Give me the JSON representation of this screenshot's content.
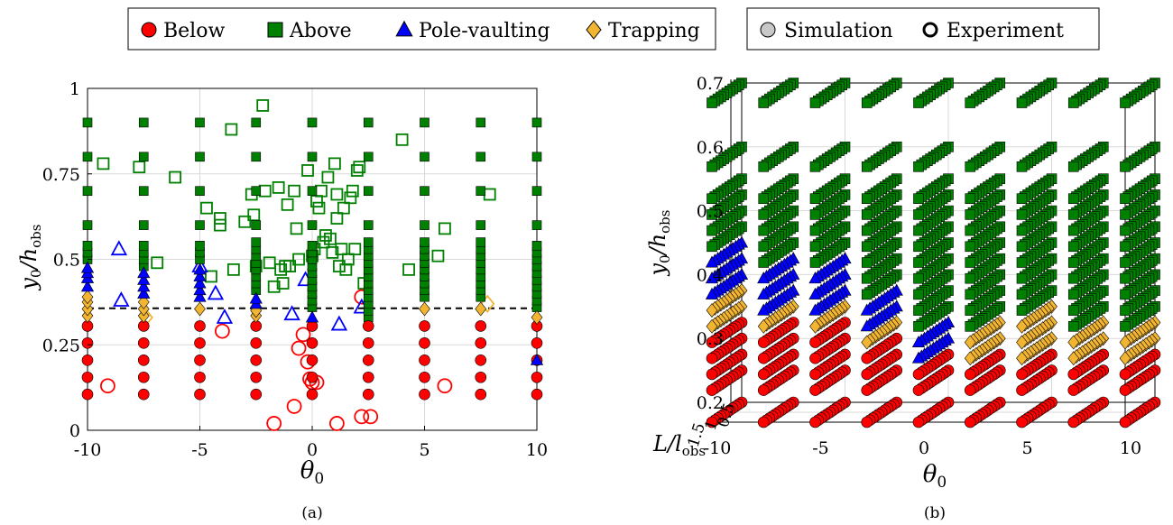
{
  "colors": {
    "below": "#ff0000",
    "above": "#008000",
    "pole": "#0000ff",
    "trap": "#f2b531",
    "grid": "#d9d9d9"
  },
  "legend_left": {
    "entries": [
      {
        "key": "below",
        "label": "Below",
        "marker": "circle"
      },
      {
        "key": "above",
        "label": "Above",
        "marker": "square"
      },
      {
        "key": "pole",
        "label": "Pole-vaulting",
        "marker": "triangle"
      },
      {
        "key": "trap",
        "label": "Trapping",
        "marker": "diamond"
      }
    ]
  },
  "legend_right": {
    "entries": [
      {
        "key": "sim",
        "label": "Simulation",
        "marker": "filled-circle"
      },
      {
        "key": "exp",
        "label": "Experiment",
        "marker": "open-circle"
      }
    ]
  },
  "panel_labels": {
    "a": "(a)",
    "b": "(b)"
  },
  "chart_data": [
    {
      "type": "scatter",
      "panel": "(a)",
      "xlabel": "θ0",
      "ylabel": "y0/hobs",
      "xlim": [
        -10,
        10
      ],
      "ylim": [
        0,
        1
      ],
      "xticks": [
        -10,
        -5,
        0,
        5,
        10
      ],
      "xtick_labels": [
        "-10",
        "-5",
        "0",
        "5",
        "10"
      ],
      "yticks": [
        0,
        0.25,
        0.5,
        0.75,
        1
      ],
      "ytick_labels": [
        "0",
        "0.25",
        "0.5",
        "0.75",
        "1"
      ],
      "grid": true,
      "threshold_line": {
        "y": 0.357,
        "style": "dashed"
      },
      "simulation_theta": [
        -10,
        -7.5,
        -5,
        -2.5,
        0,
        2.5,
        5,
        7.5,
        10
      ],
      "simulation": [
        {
          "x": -10,
          "below": [
            0.105,
            0.155,
            0.205,
            0.255,
            0.305
          ],
          "trapping": [
            0.335,
            0.355,
            0.375,
            0.39
          ],
          "pole_vaulting": [
            0.42,
            0.445,
            0.46,
            0.475
          ],
          "above": [
            0.5,
            0.52,
            0.54,
            0.6,
            0.7,
            0.8,
            0.9
          ]
        },
        {
          "x": -7.5,
          "below": [
            0.105,
            0.155,
            0.205,
            0.255,
            0.305
          ],
          "trapping": [
            0.335,
            0.355,
            0.375
          ],
          "pole_vaulting": [
            0.4,
            0.42,
            0.44,
            0.46
          ],
          "above": [
            0.48,
            0.5,
            0.52,
            0.54,
            0.6,
            0.7,
            0.8,
            0.9
          ]
        },
        {
          "x": -5,
          "below": [
            0.105,
            0.155,
            0.205,
            0.255,
            0.305
          ],
          "trapping": [
            0.355
          ],
          "pole_vaulting": [
            0.39,
            0.41,
            0.43,
            0.45,
            0.47
          ],
          "above": [
            0.5,
            0.52,
            0.54,
            0.6,
            0.7,
            0.8,
            0.9
          ]
        },
        {
          "x": -2.5,
          "below": [
            0.105,
            0.155,
            0.205,
            0.255,
            0.305
          ],
          "trapping": [
            0.335,
            0.35
          ],
          "pole_vaulting": [
            0.37,
            0.385
          ],
          "above": [
            0.41,
            0.43,
            0.45,
            0.47,
            0.49,
            0.51,
            0.53,
            0.55,
            0.6,
            0.7,
            0.8,
            0.9
          ]
        },
        {
          "x": 0,
          "below": [
            0.105,
            0.155,
            0.205,
            0.255,
            0.305
          ],
          "trapping": [],
          "pole_vaulting": [
            0.33
          ],
          "above": [
            0.36,
            0.38,
            0.4,
            0.42,
            0.44,
            0.46,
            0.48,
            0.5,
            0.52,
            0.54,
            0.6,
            0.7,
            0.8,
            0.9
          ]
        },
        {
          "x": 2.5,
          "below": [
            0.105,
            0.155,
            0.205,
            0.255,
            0.305
          ],
          "trapping": [],
          "pole_vaulting": [],
          "above": [
            0.33,
            0.35,
            0.37,
            0.39,
            0.41,
            0.43,
            0.45,
            0.47,
            0.49,
            0.51,
            0.53,
            0.55,
            0.6,
            0.7,
            0.8,
            0.9
          ]
        },
        {
          "x": 5,
          "below": [
            0.105,
            0.155,
            0.205,
            0.255,
            0.305
          ],
          "trapping": [
            0.355
          ],
          "pole_vaulting": [],
          "above": [
            0.39,
            0.41,
            0.43,
            0.45,
            0.47,
            0.49,
            0.51,
            0.53,
            0.55,
            0.6,
            0.7,
            0.8,
            0.9
          ]
        },
        {
          "x": 7.5,
          "below": [
            0.105,
            0.155,
            0.205,
            0.255,
            0.305
          ],
          "trapping": [
            0.355
          ],
          "pole_vaulting": [],
          "above": [
            0.39,
            0.41,
            0.43,
            0.45,
            0.47,
            0.49,
            0.51,
            0.53,
            0.55,
            0.6,
            0.7,
            0.8,
            0.9
          ]
        },
        {
          "x": 10,
          "below": [
            0.105,
            0.155,
            0.205,
            0.255,
            0.305
          ],
          "trapping": [
            0.33
          ],
          "pole_vaulting": [
            0.205
          ],
          "above": [
            0.36,
            0.38,
            0.4,
            0.42,
            0.44,
            0.46,
            0.48,
            0.5,
            0.52,
            0.54,
            0.6,
            0.7,
            0.8,
            0.9
          ]
        }
      ],
      "experiment": {
        "below": [
          [
            -9.1,
            0.13
          ],
          [
            -4.0,
            0.29
          ],
          [
            -1.7,
            0.02
          ],
          [
            -0.8,
            0.07
          ],
          [
            -0.6,
            0.24
          ],
          [
            -0.4,
            0.28
          ],
          [
            -0.2,
            0.2
          ],
          [
            -0.1,
            0.15
          ],
          [
            0.0,
            0.14
          ],
          [
            0.2,
            0.14
          ],
          [
            1.1,
            0.02
          ],
          [
            2.2,
            0.04
          ],
          [
            2.2,
            0.39
          ],
          [
            2.6,
            0.04
          ],
          [
            5.9,
            0.13
          ]
        ],
        "pole_vaulting": [
          [
            -8.6,
            0.53
          ],
          [
            -8.5,
            0.38
          ],
          [
            -5.0,
            0.48
          ],
          [
            -4.3,
            0.4
          ],
          [
            -3.9,
            0.33
          ],
          [
            -0.9,
            0.34
          ],
          [
            -0.3,
            0.44
          ],
          [
            1.2,
            0.31
          ],
          [
            2.2,
            0.36
          ]
        ],
        "trapping": [
          [
            -7.4,
            0.33
          ],
          [
            7.8,
            0.37
          ]
        ],
        "above": [
          [
            -9.3,
            0.78
          ],
          [
            -7.7,
            0.77
          ],
          [
            -6.9,
            0.49
          ],
          [
            -6.1,
            0.74
          ],
          [
            -4.7,
            0.65
          ],
          [
            -4.5,
            0.45
          ],
          [
            -4.1,
            0.6
          ],
          [
            -4.1,
            0.62
          ],
          [
            -3.6,
            0.88
          ],
          [
            -3.5,
            0.47
          ],
          [
            -3.0,
            0.61
          ],
          [
            -2.7,
            0.69
          ],
          [
            -2.6,
            0.63
          ],
          [
            -2.5,
            0.48
          ],
          [
            -2.2,
            0.95
          ],
          [
            -2.1,
            0.7
          ],
          [
            -1.9,
            0.49
          ],
          [
            -1.7,
            0.42
          ],
          [
            -1.5,
            0.71
          ],
          [
            -1.4,
            0.47
          ],
          [
            -1.3,
            0.43
          ],
          [
            -1.2,
            0.48
          ],
          [
            -1.1,
            0.66
          ],
          [
            -1.0,
            0.48
          ],
          [
            -0.8,
            0.7
          ],
          [
            -0.7,
            0.59
          ],
          [
            -0.6,
            0.5
          ],
          [
            -0.2,
            0.76
          ],
          [
            0.0,
            0.51
          ],
          [
            0.1,
            0.53
          ],
          [
            0.2,
            0.67
          ],
          [
            0.3,
            0.65
          ],
          [
            0.4,
            0.7
          ],
          [
            0.5,
            0.55
          ],
          [
            0.6,
            0.57
          ],
          [
            0.7,
            0.74
          ],
          [
            0.8,
            0.56
          ],
          [
            0.9,
            0.52
          ],
          [
            1.0,
            0.78
          ],
          [
            1.1,
            0.62
          ],
          [
            1.1,
            0.69
          ],
          [
            1.2,
            0.48
          ],
          [
            1.3,
            0.53
          ],
          [
            1.4,
            0.65
          ],
          [
            1.5,
            0.47
          ],
          [
            1.6,
            0.5
          ],
          [
            1.7,
            0.68
          ],
          [
            1.8,
            0.7
          ],
          [
            1.9,
            0.53
          ],
          [
            2.0,
            0.76
          ],
          [
            2.1,
            0.77
          ],
          [
            2.3,
            0.43
          ],
          [
            4.0,
            0.85
          ],
          [
            4.3,
            0.47
          ],
          [
            5.6,
            0.51
          ],
          [
            5.9,
            0.59
          ],
          [
            7.9,
            0.69
          ]
        ]
      }
    },
    {
      "type": "scatter",
      "panel": "(b)",
      "projection": "3d",
      "xlabel": "θ0",
      "ylabel": "y0/hobs",
      "zlabel": "L/lobs",
      "xlim": [
        -10,
        10
      ],
      "ylim": [
        0.2,
        0.7
      ],
      "zlim": [
        0.5,
        1.5
      ],
      "xticks": [
        -10,
        -5,
        0,
        5,
        10
      ],
      "xtick_labels": [
        "-10",
        "-5",
        "0",
        "5",
        "10"
      ],
      "yticks": [
        0.2,
        0.3,
        0.4,
        0.5,
        0.6,
        0.7
      ],
      "ytick_labels": [
        "0.2",
        "0.3",
        "0.4",
        "0.5",
        "0.6",
        "0.7"
      ],
      "zticks": [
        0.5,
        1,
        1.5
      ],
      "ztick_labels": [
        "0.5",
        "1",
        "1.5"
      ],
      "grid": true,
      "theta": [
        -10,
        -7.5,
        -5,
        -2.5,
        0,
        2.5,
        5,
        7.5,
        10
      ],
      "L_values": [
        0.5,
        0.6,
        0.7,
        0.8,
        0.9,
        1.0,
        1.1,
        1.2,
        1.3,
        1.4,
        1.5
      ],
      "y_levels": [
        0.2,
        0.25,
        0.275,
        0.3,
        0.325,
        0.35,
        0.375,
        0.4,
        0.425,
        0.45,
        0.475,
        0.5,
        0.525,
        0.55,
        0.6,
        0.7
      ],
      "outcome_thresholds": [
        {
          "x": -10,
          "trap_from": 0.35,
          "pole_from": 0.4,
          "above_from": 0.475
        },
        {
          "x": -7.5,
          "trap_from": 0.35,
          "pole_from": 0.375,
          "above_from": 0.45
        },
        {
          "x": -5,
          "trap_from": 0.35,
          "pole_from": 0.375,
          "above_from": 0.45
        },
        {
          "x": -2.5,
          "trap_from": 0.325,
          "pole_from": 0.35,
          "above_from": 0.4
        },
        {
          "x": 0,
          "trap_from": 0.325,
          "pole_from": 0.3,
          "above_from": 0.35
        },
        {
          "x": 2.5,
          "trap_from": 0.3,
          "pole_from": 0.95,
          "above_from": 0.35
        },
        {
          "x": 5,
          "trap_from": 0.3,
          "pole_from": 0.95,
          "above_from": 0.375
        },
        {
          "x": 7.5,
          "trap_from": 0.3,
          "pole_from": 0.95,
          "above_from": 0.35
        },
        {
          "x": 10,
          "trap_from": 0.3,
          "pole_from": 0.95,
          "above_from": 0.35
        }
      ]
    }
  ]
}
